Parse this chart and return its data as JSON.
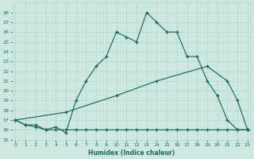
{
  "xlabel": "Humidex (Indice chaleur)",
  "bg_color": "#cce8e0",
  "grid_color": "#b0d8cc",
  "line_color": "#1a6b5a",
  "xlim": [
    -0.3,
    23.3
  ],
  "ylim": [
    15,
    29
  ],
  "yticks": [
    15,
    16,
    17,
    18,
    19,
    20,
    21,
    22,
    23,
    24,
    25,
    26,
    27,
    28
  ],
  "xticks": [
    0,
    1,
    2,
    3,
    4,
    5,
    6,
    7,
    8,
    9,
    10,
    11,
    12,
    13,
    14,
    15,
    16,
    17,
    18,
    19,
    20,
    21,
    22,
    23
  ],
  "line1_x": [
    0,
    1,
    2,
    3,
    4,
    5,
    6,
    7,
    8,
    9,
    10,
    11,
    12,
    13,
    14,
    15,
    16,
    17,
    18,
    19,
    20,
    21,
    22,
    23
  ],
  "line1_y": [
    17,
    16.5,
    16.5,
    16,
    16.3,
    15.7,
    19,
    21,
    22.5,
    23.5,
    26,
    25.5,
    25,
    28,
    27,
    26,
    26,
    23.5,
    23.5,
    21,
    19.5,
    17,
    16,
    16
  ],
  "line2_x": [
    0,
    1,
    2,
    3,
    4,
    5,
    6,
    7,
    8,
    9,
    10,
    11,
    12,
    13,
    14,
    15,
    16,
    17,
    18,
    19,
    20,
    21,
    22,
    23
  ],
  "line2_y": [
    17,
    16.5,
    16.3,
    16,
    16,
    16,
    16,
    16,
    16,
    16,
    16,
    16,
    16,
    16,
    16,
    16,
    16,
    16,
    16,
    16,
    16,
    16,
    16,
    16
  ],
  "line3_x": [
    0,
    5,
    10,
    14,
    19,
    21,
    22,
    23
  ],
  "line3_y": [
    17,
    17.8,
    19.5,
    21,
    22.5,
    21,
    19,
    16
  ]
}
